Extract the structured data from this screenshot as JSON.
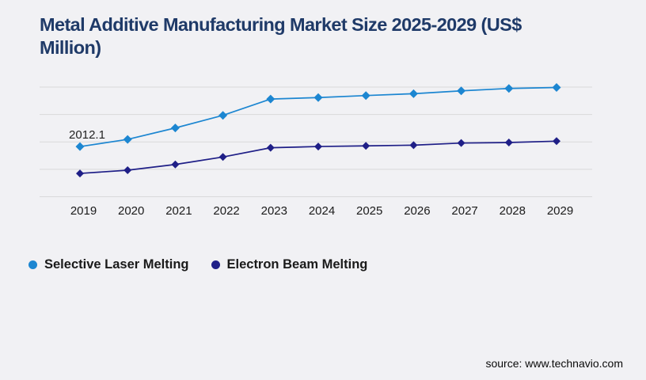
{
  "header": {
    "title_line1": "Metal Additive Manufacturing Market Size 2025-2029 (US$",
    "title_line2": "Million)"
  },
  "chart_data": {
    "type": "line",
    "title": "Metal Additive Manufacturing Market Size 2025-2029 (US$ Million)",
    "x_labels": [
      "2019",
      "2020",
      "2021",
      "2022",
      "2023",
      "2024",
      "2025",
      "2026",
      "2027",
      "2028",
      "2029"
    ],
    "series": [
      {
        "name": "Selective Laser Melting",
        "color": "#1c86d1",
        "marker": "diamond",
        "values": [
          2012.1,
          2300,
          2760,
          3265,
          3920,
          3980,
          4060,
          4135,
          4250,
          4345,
          4385
        ]
      },
      {
        "name": "Electron Beam Melting",
        "color": "#1f1f87",
        "marker": "diamond",
        "values": [
          935,
          1065,
          1295,
          1595,
          1965,
          2015,
          2040,
          2070,
          2155,
          2175,
          2230
        ]
      }
    ],
    "data_labels": [
      {
        "series_index": 0,
        "point_index": 0,
        "text": "2012.1"
      }
    ],
    "ylim": [
      0,
      4400
    ],
    "gridlines": "horizontal",
    "gridline_count": 5,
    "y_axis_labels_visible": false,
    "legend_position": "bottom-left"
  },
  "footer": {
    "source": "source: www.technavio.com"
  },
  "colors": {
    "background": "#f1f1f4",
    "title": "#1f3a68",
    "gridline": "#d9d9da",
    "axis_text": "#1b1b1b",
    "data_label_text": "#222222"
  }
}
